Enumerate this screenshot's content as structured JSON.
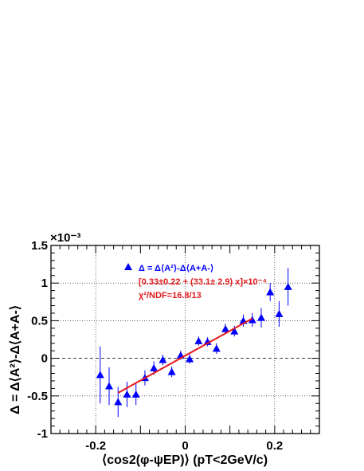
{
  "chart_data": {
    "type": "scatter",
    "xlabel": "⟨cos2(φ-ψEP)⟩ (pT<2GeV/c)",
    "ylabel": "Δ = Δ⟨A²⟩-Δ⟨A+A-⟩",
    "y_multiplier": "×10⁻³",
    "xlim": [
      -0.3,
      0.3
    ],
    "ylim": [
      -1.0,
      1.5
    ],
    "x_ticks": [
      -0.2,
      0,
      0.2
    ],
    "x_tick_labels": [
      "-0.2",
      "0",
      "0.2"
    ],
    "y_ticks": [
      -1,
      -0.5,
      0,
      0.5,
      1,
      1.5
    ],
    "y_tick_labels": [
      "-1",
      "-0.5",
      "0",
      "0.5",
      "1",
      "1.5"
    ],
    "grid": true,
    "series": [
      {
        "name": "Δ = Δ⟨A²⟩-Δ⟨A+A-⟩",
        "color": "#0000ff",
        "marker": "triangle-up",
        "points": [
          {
            "x": -0.19,
            "y": -0.22,
            "err": 0.38
          },
          {
            "x": -0.17,
            "y": -0.37,
            "err": 0.25
          },
          {
            "x": -0.15,
            "y": -0.58,
            "err": 0.2
          },
          {
            "x": -0.13,
            "y": -0.48,
            "err": 0.17
          },
          {
            "x": -0.11,
            "y": -0.48,
            "err": 0.14
          },
          {
            "x": -0.09,
            "y": -0.26,
            "err": 0.1
          },
          {
            "x": -0.07,
            "y": -0.13,
            "err": 0.09
          },
          {
            "x": -0.05,
            "y": -0.02,
            "err": 0.07
          },
          {
            "x": -0.03,
            "y": -0.18,
            "err": 0.07
          },
          {
            "x": -0.01,
            "y": 0.04,
            "err": 0.06
          },
          {
            "x": 0.01,
            "y": -0.01,
            "err": 0.06
          },
          {
            "x": 0.03,
            "y": 0.23,
            "err": 0.06
          },
          {
            "x": 0.05,
            "y": 0.22,
            "err": 0.06
          },
          {
            "x": 0.07,
            "y": 0.13,
            "err": 0.07
          },
          {
            "x": 0.09,
            "y": 0.39,
            "err": 0.07
          },
          {
            "x": 0.11,
            "y": 0.36,
            "err": 0.07
          },
          {
            "x": 0.13,
            "y": 0.5,
            "err": 0.08
          },
          {
            "x": 0.15,
            "y": 0.51,
            "err": 0.09
          },
          {
            "x": 0.17,
            "y": 0.54,
            "err": 0.13
          },
          {
            "x": 0.19,
            "y": 0.88,
            "err": 0.12
          },
          {
            "x": 0.21,
            "y": 0.59,
            "err": 0.17
          },
          {
            "x": 0.23,
            "y": 0.95,
            "err": 0.25
          }
        ]
      }
    ],
    "fit": {
      "color": "#e31a1c",
      "x": [
        -0.15,
        0.15
      ],
      "y": [
        -0.46,
        0.53
      ],
      "label": "[0.33±0.22 + (33.1± 2.9) x]×10⁻⁴",
      "chi2_label": "χ²/NDF=16.8/13"
    },
    "legend_placement": "top-left"
  }
}
